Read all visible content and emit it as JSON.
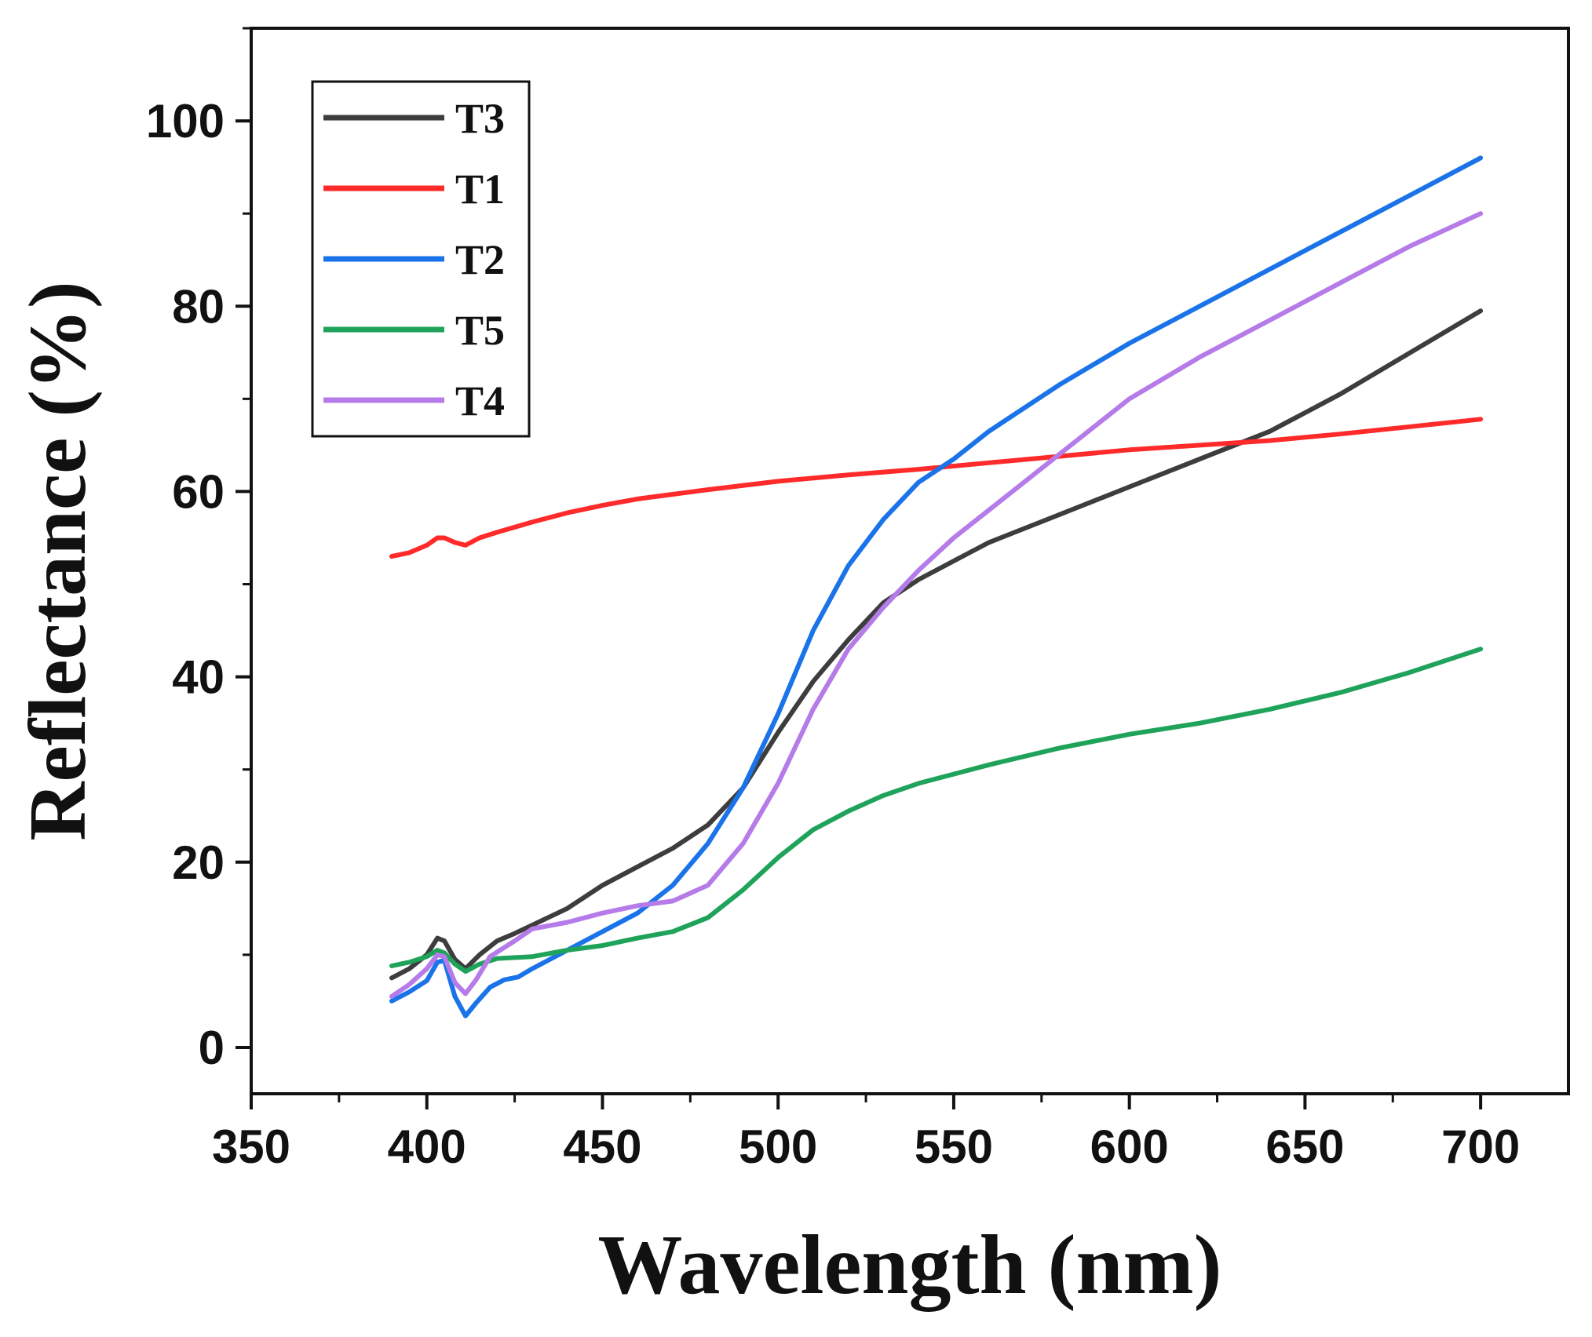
{
  "chart_data": {
    "type": "line",
    "title": "",
    "xlabel": "Wavelength (nm)",
    "ylabel": "Reflectance (%)",
    "xlim": [
      350,
      725
    ],
    "ylim": [
      -5,
      110
    ],
    "xticks": [
      350,
      400,
      450,
      500,
      550,
      600,
      650,
      700
    ],
    "yticks": [
      0,
      20,
      40,
      60,
      80,
      100
    ],
    "legend_position": "top-left",
    "series": [
      {
        "name": "T3",
        "color": "#3d3d3d",
        "x": [
          390,
          395,
          400,
          403,
          405,
          408,
          411,
          415,
          420,
          425,
          430,
          440,
          450,
          460,
          470,
          480,
          490,
          500,
          510,
          520,
          530,
          540,
          550,
          560,
          580,
          600,
          620,
          640,
          660,
          680,
          700
        ],
        "y": [
          7.5,
          8.5,
          10,
          11.8,
          11.5,
          9.5,
          8.5,
          10,
          11.5,
          12.3,
          13.2,
          15,
          17.5,
          19.5,
          21.5,
          24,
          28,
          34,
          39.5,
          44,
          48,
          50.5,
          52.5,
          54.5,
          57.5,
          60.5,
          63.5,
          66.5,
          70.5,
          75,
          79.5
        ]
      },
      {
        "name": "T1",
        "color": "#ff2a2a",
        "x": [
          390,
          395,
          400,
          403,
          405,
          408,
          411,
          415,
          420,
          430,
          440,
          450,
          460,
          470,
          480,
          500,
          520,
          540,
          560,
          580,
          600,
          620,
          640,
          660,
          680,
          700
        ],
        "y": [
          53,
          53.4,
          54.2,
          55,
          55,
          54.5,
          54.2,
          55,
          55.6,
          56.7,
          57.7,
          58.5,
          59.2,
          59.7,
          60.2,
          61.1,
          61.8,
          62.4,
          63.1,
          63.8,
          64.5,
          65,
          65.5,
          66.2,
          67,
          67.8
        ]
      },
      {
        "name": "T2",
        "color": "#1a73e8",
        "x": [
          390,
          395,
          400,
          403,
          405,
          408,
          411,
          414,
          418,
          422,
          426,
          430,
          440,
          450,
          460,
          470,
          480,
          490,
          500,
          510,
          520,
          530,
          540,
          550,
          560,
          580,
          600,
          620,
          640,
          660,
          680,
          700
        ],
        "y": [
          5,
          6,
          7.2,
          9.2,
          9.4,
          5.5,
          3.4,
          4.8,
          6.5,
          7.3,
          7.6,
          8.5,
          10.5,
          12.5,
          14.5,
          17.5,
          22,
          28,
          36,
          45,
          52,
          57,
          61,
          63.5,
          66.5,
          71.5,
          76,
          80,
          84,
          88,
          92,
          96
        ]
      },
      {
        "name": "T5",
        "color": "#1fa35a",
        "x": [
          390,
          395,
          400,
          403,
          405,
          408,
          411,
          415,
          420,
          430,
          440,
          450,
          460,
          470,
          480,
          490,
          500,
          510,
          520,
          530,
          540,
          550,
          560,
          580,
          600,
          620,
          640,
          660,
          680,
          700
        ],
        "y": [
          8.8,
          9.2,
          9.8,
          10.5,
          10.2,
          9,
          8.2,
          9,
          9.6,
          9.8,
          10.5,
          11,
          11.8,
          12.5,
          14,
          17,
          20.5,
          23.5,
          25.5,
          27.2,
          28.5,
          29.5,
          30.5,
          32.3,
          33.8,
          35,
          36.5,
          38.3,
          40.5,
          43
        ]
      },
      {
        "name": "T4",
        "color": "#b57be8",
        "x": [
          390,
          395,
          400,
          403,
          405,
          408,
          411,
          414,
          418,
          425,
          430,
          440,
          450,
          460,
          470,
          480,
          490,
          500,
          510,
          520,
          530,
          540,
          550,
          560,
          580,
          600,
          620,
          640,
          660,
          680,
          700
        ],
        "y": [
          5.5,
          6.8,
          8.5,
          10,
          9.8,
          7,
          5.8,
          7.3,
          9.8,
          11.5,
          12.8,
          13.5,
          14.5,
          15.3,
          15.8,
          17.5,
          22,
          28.5,
          36.5,
          43,
          47.5,
          51.5,
          55,
          58,
          64,
          70,
          74.5,
          78.5,
          82.5,
          86.5,
          90
        ]
      }
    ]
  }
}
